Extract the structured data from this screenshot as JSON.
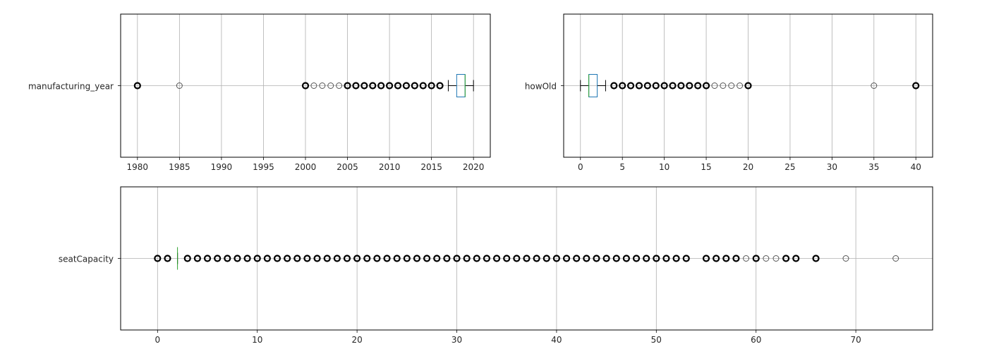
{
  "chart_data": [
    {
      "type": "boxplot",
      "orientation": "horizontal",
      "category": "manufacturing_year",
      "xlim": [
        1978,
        2022
      ],
      "ticks": [
        1980,
        1985,
        1990,
        1995,
        2000,
        2005,
        2010,
        2015,
        2020
      ],
      "tick_labels": [
        "1980",
        "1985",
        "1990",
        "1995",
        "2000",
        "2005",
        "2010",
        "2015",
        "2020"
      ],
      "grid": true,
      "box": {
        "whisker_low": 2017,
        "q1": 2018,
        "median": 2019,
        "q3": 2019,
        "whisker_high": 2020
      },
      "outliers": [
        1980,
        1985,
        2000,
        2001,
        2002,
        2003,
        2004,
        2005,
        2006,
        2007,
        2008,
        2009,
        2010,
        2011,
        2012,
        2013,
        2014,
        2015,
        2016
      ],
      "heavy_outliers": [
        1980,
        2000,
        2005,
        2006,
        2007,
        2008,
        2009,
        2010,
        2011,
        2012,
        2013,
        2014,
        2015,
        2016
      ],
      "colors": {
        "box": "#1f77b4",
        "median": "#2ca02c",
        "whisker": "#000000"
      }
    },
    {
      "type": "boxplot",
      "orientation": "horizontal",
      "category": "howOld",
      "xlim": [
        -2,
        42
      ],
      "ticks": [
        0,
        5,
        10,
        15,
        20,
        25,
        30,
        35,
        40
      ],
      "tick_labels": [
        "0",
        "5",
        "10",
        "15",
        "20",
        "25",
        "30",
        "35",
        "40"
      ],
      "grid": true,
      "box": {
        "whisker_low": 0,
        "q1": 1,
        "median": 1,
        "q3": 2,
        "whisker_high": 3
      },
      "outliers": [
        4,
        5,
        6,
        7,
        8,
        9,
        10,
        11,
        12,
        13,
        14,
        15,
        16,
        17,
        18,
        19,
        20,
        35,
        40
      ],
      "heavy_outliers": [
        4,
        5,
        6,
        7,
        8,
        9,
        10,
        11,
        12,
        13,
        14,
        15,
        20,
        40
      ],
      "colors": {
        "box": "#1f77b4",
        "median": "#2ca02c",
        "whisker": "#000000"
      }
    },
    {
      "type": "boxplot",
      "orientation": "horizontal",
      "category": "seatCapacity",
      "xlim": [
        -3.7,
        77.7
      ],
      "ticks": [
        0,
        10,
        20,
        30,
        40,
        50,
        60,
        70
      ],
      "tick_labels": [
        "0",
        "10",
        "20",
        "30",
        "40",
        "50",
        "60",
        "70"
      ],
      "grid": true,
      "box": {
        "whisker_low": 2,
        "q1": 2,
        "median": 2,
        "q3": 2,
        "whisker_high": 2
      },
      "outliers": [
        0,
        1,
        3,
        4,
        5,
        6,
        7,
        8,
        9,
        10,
        11,
        12,
        13,
        14,
        15,
        16,
        17,
        18,
        19,
        20,
        21,
        22,
        23,
        24,
        25,
        26,
        27,
        28,
        29,
        30,
        31,
        32,
        33,
        34,
        35,
        36,
        37,
        38,
        39,
        40,
        41,
        42,
        43,
        44,
        45,
        46,
        47,
        48,
        49,
        50,
        51,
        52,
        53,
        55,
        56,
        57,
        58,
        59,
        60,
        61,
        62,
        63,
        64,
        66,
        69,
        74
      ],
      "heavy_outliers": [
        0,
        1,
        3,
        4,
        5,
        6,
        7,
        8,
        9,
        10,
        11,
        12,
        13,
        14,
        15,
        16,
        17,
        18,
        19,
        20,
        21,
        22,
        23,
        24,
        25,
        26,
        27,
        28,
        29,
        30,
        31,
        32,
        33,
        34,
        35,
        36,
        37,
        38,
        39,
        40,
        41,
        42,
        43,
        44,
        45,
        46,
        47,
        48,
        49,
        50,
        51,
        52,
        53,
        55,
        56,
        57,
        58,
        60,
        63,
        64,
        66
      ],
      "colors": {
        "box": "#1f77b4",
        "median": "#2ca02c",
        "whisker": "#000000"
      }
    }
  ]
}
